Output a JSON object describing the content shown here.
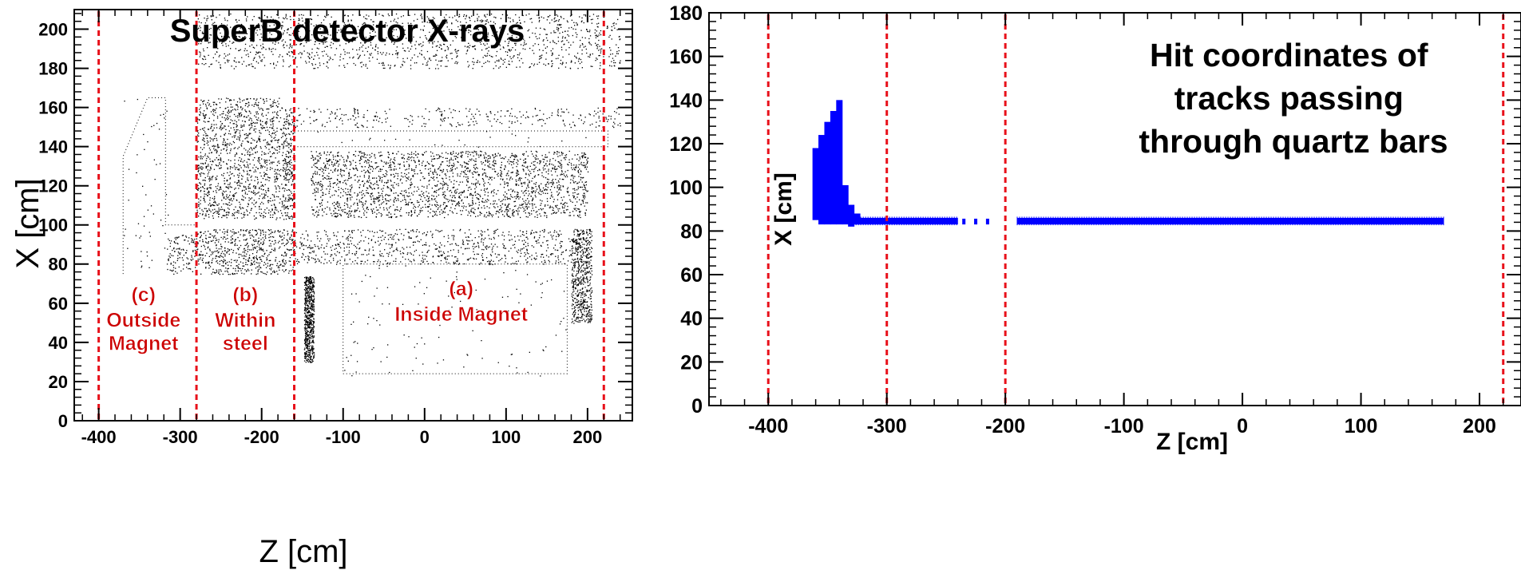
{
  "chart_data": [
    {
      "type": "scatter",
      "title": "SuperB detector X-rays",
      "xlabel": "Z [cm]",
      "ylabel": "X [cm]",
      "xlim": [
        -430,
        255
      ],
      "ylim": [
        0,
        210
      ],
      "x_ticks": [
        -400,
        -300,
        -200,
        -100,
        0,
        100,
        200
      ],
      "y_ticks": [
        0,
        20,
        40,
        60,
        80,
        100,
        120,
        140,
        160,
        180,
        200
      ],
      "vlines": [
        -400,
        -280,
        -160,
        220
      ],
      "annotations": [
        {
          "text": "(c)",
          "z": -345,
          "x": 61
        },
        {
          "text": "Outside",
          "z": -345,
          "x": 48
        },
        {
          "text": "Magnet",
          "z": -345,
          "x": 36
        },
        {
          "text": "(b)",
          "z": -220,
          "x": 61
        },
        {
          "text": "Within",
          "z": -220,
          "x": 48
        },
        {
          "text": "steel",
          "z": -220,
          "x": 36
        },
        {
          "text": "(a)",
          "z": 45,
          "x": 64
        },
        {
          "text": "Inside Magnet",
          "z": 45,
          "x": 51
        }
      ],
      "regions": [
        {
          "z": [
            -370,
            -315
          ],
          "x": [
            75,
            165
          ],
          "density": 0.004
        },
        {
          "z": [
            -320,
            -280
          ],
          "x": [
            75,
            95
          ],
          "density": 0.06
        },
        {
          "z": [
            -280,
            -160
          ],
          "x": [
            75,
            98
          ],
          "density": 0.09
        },
        {
          "z": [
            -280,
            -175
          ],
          "x": [
            103,
            165
          ],
          "density": 0.08
        },
        {
          "z": [
            -175,
            -160
          ],
          "x": [
            103,
            160
          ],
          "density": 0.12
        },
        {
          "z": [
            -280,
            240
          ],
          "x": [
            180,
            208
          ],
          "density": 0.04
        },
        {
          "z": [
            -168,
            240
          ],
          "x": [
            150,
            160
          ],
          "density": 0.03
        },
        {
          "z": [
            -140,
            200
          ],
          "x": [
            104,
            138
          ],
          "density": 0.08
        },
        {
          "z": [
            -160,
            180
          ],
          "x": [
            80,
            98
          ],
          "density": 0.05
        },
        {
          "z": [
            -148,
            -136
          ],
          "x": [
            30,
            74
          ],
          "density": 0.5
        },
        {
          "z": [
            180,
            205
          ],
          "x": [
            50,
            98
          ],
          "density": 0.2
        },
        {
          "z": [
            -100,
            175
          ],
          "x": [
            23,
            80
          ],
          "density": 0.003
        },
        {
          "z": [
            -145,
            225
          ],
          "x": [
            140,
            148
          ],
          "density": 0.003
        }
      ],
      "grid": false,
      "color": "#000000",
      "vline_color": "#e8101a",
      "annotation_color": "#cc0000"
    },
    {
      "type": "scatter",
      "title": "Hit coordinates of tracks passing through quartz bars",
      "title_lines": [
        "Hit coordinates of",
        "tracks passing",
        "through quartz bars"
      ],
      "xlabel": "Z [cm]",
      "ylabel": "X [cm]",
      "xlim": [
        -450,
        235
      ],
      "ylim": [
        0,
        180
      ],
      "x_ticks": [
        -400,
        -300,
        -200,
        -100,
        0,
        100,
        200
      ],
      "y_ticks": [
        0,
        20,
        40,
        60,
        80,
        100,
        120,
        140,
        160,
        180
      ],
      "vlines": [
        -400,
        -300,
        -200,
        220
      ],
      "bars": [
        {
          "z": -360,
          "x_min": 85,
          "x_max": 118
        },
        {
          "z": -355,
          "x_min": 83,
          "x_max": 124
        },
        {
          "z": -350,
          "x_min": 83,
          "x_max": 130
        },
        {
          "z": -345,
          "x_min": 83,
          "x_max": 135
        },
        {
          "z": -340,
          "x_min": 83,
          "x_max": 140
        },
        {
          "z": -335,
          "x_min": 83,
          "x_max": 101
        },
        {
          "z": -330,
          "x_min": 82,
          "x_max": 92
        },
        {
          "z": -325,
          "x_min": 83,
          "x_max": 88
        }
      ],
      "band": {
        "x_min": 83,
        "x_max": 86,
        "z_segments": [
          [
            -330,
            -240
          ],
          [
            -190,
            170
          ]
        ],
        "scattered_z": [
          -235,
          -225,
          -215
        ]
      },
      "grid": false,
      "color": "#0000ff",
      "vline_color": "#e8101a"
    }
  ]
}
